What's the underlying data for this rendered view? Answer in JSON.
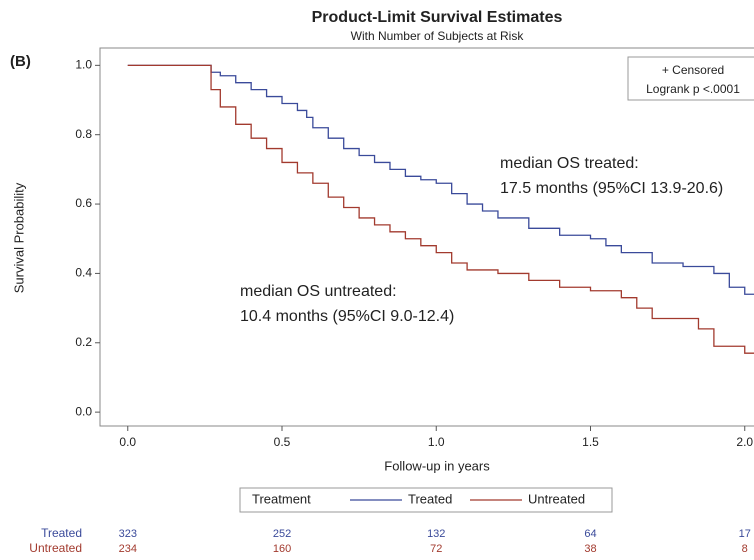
{
  "chart_data": {
    "type": "step",
    "title": "Product-Limit Survival Estimates",
    "subtitle": "With Number of Subjects at Risk",
    "panel_label": "(B)",
    "x_label": "Follow-up in years",
    "y_label": "Survival Probability",
    "xlim": [
      -0.09,
      2.03
    ],
    "ylim": [
      -0.04,
      1.05
    ],
    "xticks": [
      {
        "value": 0,
        "label": "0.0"
      },
      0.5,
      {
        "value": 1,
        "label": "1.0"
      },
      1.5,
      {
        "value": 2,
        "label": "2.0"
      }
    ],
    "yticks": [
      {
        "value": 0,
        "label": "0.0"
      },
      0.2,
      0.4,
      0.6,
      0.8,
      {
        "value": 1,
        "label": "1.0"
      }
    ],
    "legend_title": "Treatment",
    "series": [
      {
        "name": "Treated",
        "color": "#3a4a9a",
        "x": [
          0,
          0.25,
          0.27,
          0.3,
          0.35,
          0.4,
          0.45,
          0.5,
          0.55,
          0.58,
          0.6,
          0.65,
          0.7,
          0.75,
          0.8,
          0.85,
          0.9,
          0.95,
          1.0,
          1.05,
          1.1,
          1.15,
          1.2,
          1.3,
          1.4,
          1.5,
          1.55,
          1.6,
          1.7,
          1.8,
          1.9,
          1.95,
          2.0,
          2.03
        ],
        "values": [
          1.0,
          1.0,
          0.98,
          0.97,
          0.95,
          0.93,
          0.91,
          0.89,
          0.87,
          0.85,
          0.82,
          0.79,
          0.76,
          0.74,
          0.72,
          0.7,
          0.68,
          0.67,
          0.66,
          0.63,
          0.6,
          0.58,
          0.56,
          0.53,
          0.51,
          0.5,
          0.48,
          0.46,
          0.43,
          0.42,
          0.4,
          0.36,
          0.34,
          0.34
        ],
        "at_risk": [
          323,
          252,
          132,
          64,
          17
        ]
      },
      {
        "name": "Untreated",
        "color": "#a23a2e",
        "x": [
          0,
          0.25,
          0.27,
          0.3,
          0.35,
          0.4,
          0.45,
          0.5,
          0.55,
          0.6,
          0.65,
          0.7,
          0.75,
          0.8,
          0.85,
          0.9,
          0.95,
          1.0,
          1.05,
          1.1,
          1.2,
          1.3,
          1.4,
          1.5,
          1.6,
          1.65,
          1.7,
          1.85,
          1.9,
          2.0,
          2.03
        ],
        "values": [
          1.0,
          1.0,
          0.93,
          0.88,
          0.83,
          0.79,
          0.76,
          0.72,
          0.69,
          0.66,
          0.62,
          0.59,
          0.56,
          0.54,
          0.52,
          0.5,
          0.48,
          0.46,
          0.43,
          0.41,
          0.4,
          0.38,
          0.36,
          0.35,
          0.33,
          0.3,
          0.27,
          0.24,
          0.19,
          0.17,
          0.17
        ],
        "at_risk": [
          234,
          160,
          72,
          38,
          8
        ]
      }
    ],
    "inset_legend": [
      "+ Censored",
      "Logrank p <.0001"
    ],
    "annotations": [
      [
        "median OS treated:",
        "17.5 months (95%CI 13.9-20.6)"
      ],
      [
        "median OS untreated:",
        "10.4 months (95%CI 9.0-12.4)"
      ]
    ]
  }
}
